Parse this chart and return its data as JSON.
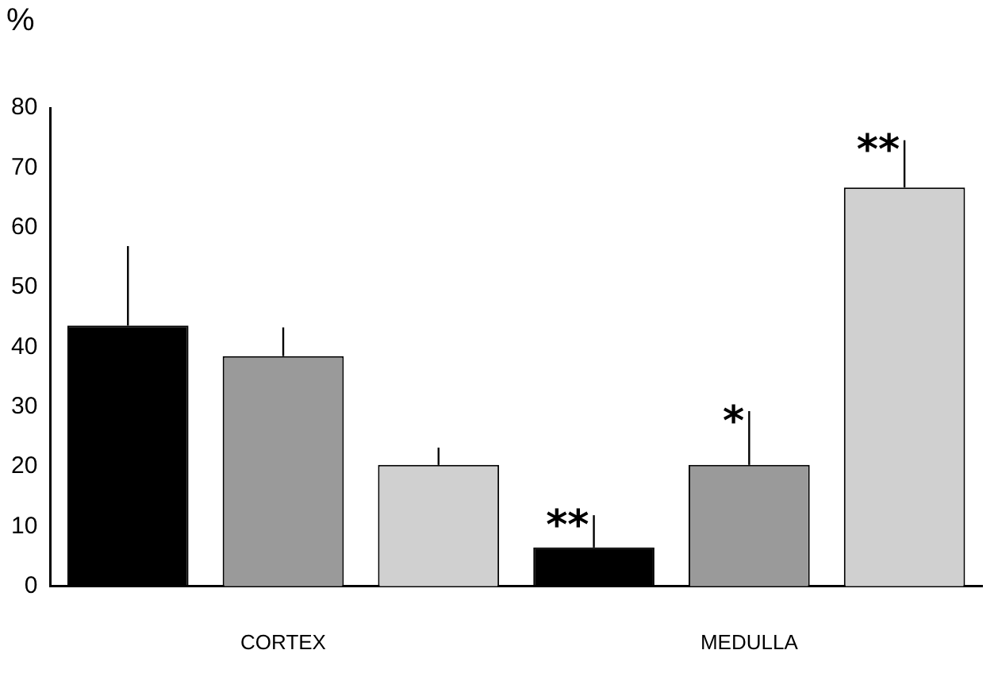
{
  "chart_data": {
    "type": "bar",
    "ylabel": "%",
    "categories": [
      "CORTEX",
      "MEDULLA"
    ],
    "series": [
      {
        "color": "#000000",
        "values": [
          43.6,
          6.5
        ],
        "errors": [
          [
            43.6,
            56.9
          ],
          [
            6.5,
            11.9
          ]
        ]
      },
      {
        "color": "#9a9a9a",
        "values": [
          38.5,
          20.3
        ],
        "errors": [
          [
            38.5,
            43.3
          ],
          [
            20.3,
            29.3
          ]
        ]
      },
      {
        "color": "#d0d0d0",
        "values": [
          20.3,
          66.7
        ],
        "errors": [
          [
            20.3,
            23.2
          ],
          [
            66.7,
            74.6
          ]
        ]
      }
    ],
    "ylim": [
      0,
      80
    ],
    "yticks": [
      0,
      10,
      20,
      30,
      40,
      50,
      60,
      70,
      80
    ],
    "grid": false,
    "legend": false,
    "annotations": [
      "**",
      "*",
      "**"
    ]
  }
}
